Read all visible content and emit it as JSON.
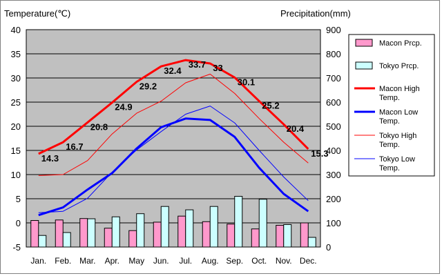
{
  "chart_data": {
    "type": "bar+line",
    "title": "",
    "left_axis_label": "Temperature(℃)",
    "right_axis_label": "Precipitation(mm)",
    "categories": [
      "Jan.",
      "Feb.",
      "Mar.",
      "Apr.",
      "May",
      "Jun.",
      "Jul.",
      "Aug.",
      "Sep.",
      "Oct.",
      "Nov.",
      "Dec."
    ],
    "left_axis": {
      "min": -5,
      "max": 40,
      "ticks": [
        40,
        35,
        30,
        25,
        20,
        15,
        10,
        5,
        0,
        -5
      ]
    },
    "right_axis": {
      "min": 0,
      "max": 900,
      "ticks": [
        900,
        800,
        700,
        600,
        500,
        400,
        300,
        200,
        100,
        0
      ]
    },
    "grid": true,
    "legend_position": "right",
    "bar_series": [
      {
        "name": "Macon Prcp.",
        "axis": "right",
        "color": "#ff99cc",
        "values": [
          110,
          112,
          118,
          78,
          68,
          103,
          128,
          105,
          95,
          75,
          90,
          100
        ]
      },
      {
        "name": "Tokyo Prcp.",
        "axis": "right",
        "color": "#ccffff",
        "values": [
          48,
          60,
          117,
          125,
          138,
          168,
          154,
          168,
          210,
          198,
          93,
          40
        ]
      }
    ],
    "line_series": [
      {
        "name": "Macon High Temp.",
        "axis": "left",
        "color": "#ff0000",
        "thick": true,
        "values": [
          14.3,
          16.7,
          20.8,
          24.9,
          29.2,
          32.4,
          33.7,
          33,
          30.1,
          25.2,
          20.4,
          15.3
        ],
        "value_labels": [
          "14.3",
          "16.7",
          "20.8",
          "24.9",
          "29.2",
          "32.4",
          "33.7",
          "33",
          "30.1",
          "25.2",
          "20.4",
          "15.3"
        ]
      },
      {
        "name": "Macon Low Temp.",
        "axis": "left",
        "color": "#0000ff",
        "thick": true,
        "values": [
          1.6,
          3.2,
          6.9,
          10.3,
          15.4,
          19.8,
          21.6,
          21.3,
          17.8,
          11.4,
          6.0,
          2.4
        ]
      },
      {
        "name": "Tokyo High Temp.",
        "axis": "left",
        "color": "#ff0000",
        "thick": false,
        "values": [
          9.8,
          10.0,
          12.9,
          18.4,
          22.7,
          25.2,
          29.0,
          30.8,
          26.8,
          21.6,
          16.7,
          12.4
        ]
      },
      {
        "name": "Tokyo Low Temp.",
        "axis": "left",
        "color": "#0000ff",
        "thick": false,
        "values": [
          2.1,
          2.4,
          5.1,
          10.5,
          15.1,
          18.9,
          22.5,
          24.2,
          20.7,
          15.0,
          9.5,
          4.6
        ]
      }
    ]
  }
}
